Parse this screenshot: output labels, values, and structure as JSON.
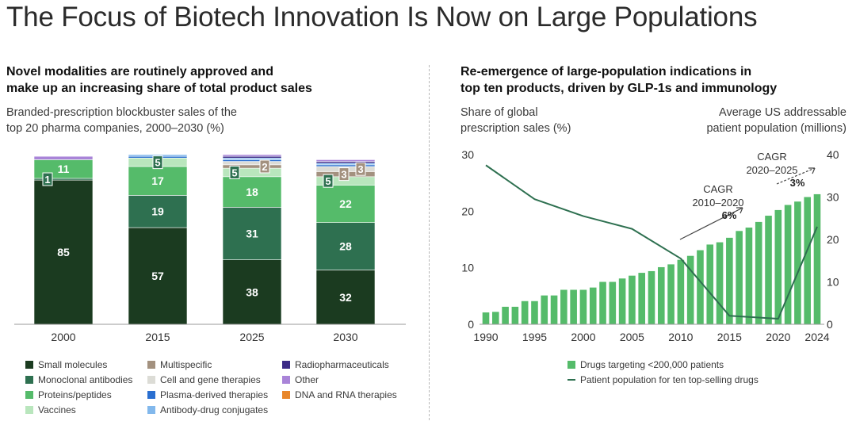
{
  "page": {
    "title": "The Focus of Biotech Innovation Is Now on Large Populations",
    "left_heading": [
      "Novel modalities are routinely approved and",
      "make up an increasing share of total product sales"
    ],
    "left_subtitle": [
      "Branded-prescription blockbuster sales of the",
      "top 20 pharma companies, 2000–2030 (%)"
    ],
    "right_heading": [
      "Re-emergence of large-population indications in",
      "top ten products, driven by GLP-1s and immunology"
    ],
    "right_left_axis_title": [
      "Share of global",
      "prescription sales (%)"
    ],
    "right_right_axis_title": [
      "Average US addressable",
      "patient population (millions)"
    ]
  },
  "chart_data": [
    {
      "type": "bar",
      "stacked": true,
      "title": "Branded-prescription blockbuster sales of the top 20 pharma companies, 2000–2030 (%)",
      "categories": [
        "2000",
        "2015",
        "2025",
        "2030"
      ],
      "ylim": [
        0,
        100
      ],
      "series": [
        {
          "name": "Small molecules",
          "color": "#1b3b20",
          "values": [
            85,
            57,
            38,
            32
          ]
        },
        {
          "name": "Monoclonal antibodies",
          "color": "#2e7050",
          "values": [
            1,
            19,
            31,
            28
          ]
        },
        {
          "name": "Proteins/peptides",
          "color": "#55bb6a",
          "values": [
            11,
            17,
            18,
            22
          ]
        },
        {
          "name": "Vaccines",
          "color": "#b9e6bd",
          "values": [
            0,
            5,
            5,
            5
          ]
        },
        {
          "name": "Multispecific",
          "color": "#a3917f",
          "values": [
            0,
            0,
            2,
            3
          ]
        },
        {
          "name": "Cell and gene therapies",
          "color": "#dcdcd6",
          "values": [
            0,
            0,
            2,
            3
          ]
        },
        {
          "name": "Plasma-derived therapies",
          "color": "#2a6fd0",
          "values": [
            0,
            1,
            1,
            1
          ]
        },
        {
          "name": "Antibody-drug conjugates",
          "color": "#82b8ec",
          "values": [
            0,
            1,
            1,
            1
          ]
        },
        {
          "name": "Radiopharmaceuticals",
          "color": "#3b2a86",
          "values": [
            0,
            0,
            1,
            1
          ]
        },
        {
          "name": "Other",
          "color": "#a984d8",
          "values": [
            2,
            0,
            1,
            1
          ]
        },
        {
          "name": "DNA and RNA therapies",
          "color": "#e8862a",
          "values": [
            0,
            0,
            0,
            0
          ]
        }
      ],
      "data_labels": [
        {
          "category": "2000",
          "series": "Small molecules",
          "text": "85"
        },
        {
          "category": "2000",
          "series": "Monoclonal antibodies",
          "text": "1"
        },
        {
          "category": "2000",
          "series": "Proteins/peptides",
          "text": "11"
        },
        {
          "category": "2015",
          "series": "Small molecules",
          "text": "57"
        },
        {
          "category": "2015",
          "series": "Monoclonal antibodies",
          "text": "19"
        },
        {
          "category": "2015",
          "series": "Proteins/peptides",
          "text": "17"
        },
        {
          "category": "2015",
          "series": "Vaccines",
          "text": "5"
        },
        {
          "category": "2025",
          "series": "Small molecules",
          "text": "38"
        },
        {
          "category": "2025",
          "series": "Monoclonal antibodies",
          "text": "31"
        },
        {
          "category": "2025",
          "series": "Proteins/peptides",
          "text": "18"
        },
        {
          "category": "2025",
          "series": "Vaccines",
          "text": "5"
        },
        {
          "category": "2025",
          "series": "Multispecific",
          "text": "2"
        },
        {
          "category": "2030",
          "series": "Small molecules",
          "text": "32"
        },
        {
          "category": "2030",
          "series": "Monoclonal antibodies",
          "text": "28"
        },
        {
          "category": "2030",
          "series": "Proteins/peptides",
          "text": "22"
        },
        {
          "category": "2030",
          "series": "Vaccines",
          "text": "5"
        },
        {
          "category": "2030",
          "series": "Multispecific",
          "text": "3"
        },
        {
          "category": "2030",
          "series": "Cell and gene therapies",
          "text": "3"
        }
      ],
      "legend": [
        "Small molecules",
        "Monoclonal antibodies",
        "Proteins/peptides",
        "Vaccines",
        "Multispecific",
        "Cell and gene therapies",
        "Plasma-derived therapies",
        "Antibody-drug conjugates",
        "Radiopharmaceuticals",
        "Other",
        "DNA and RNA therapies"
      ]
    },
    {
      "type": "bar+line",
      "title": "Re-emergence of large-population indications in top ten products, driven by GLP-1s and immunology",
      "x_ticks": [
        "1990",
        "1995",
        "2000",
        "2005",
        "2010",
        "2015",
        "2020",
        "2024"
      ],
      "x_range": [
        1990,
        2024
      ],
      "left_axis": {
        "label": "Share of global prescription sales (%)",
        "range": [
          0,
          30
        ],
        "ticks": [
          "0",
          "10",
          "20",
          "30"
        ]
      },
      "right_axis": {
        "label": "Average US addressable patient population (millions)",
        "range": [
          0,
          40
        ],
        "ticks": [
          "0",
          "10",
          "20",
          "30",
          "40"
        ]
      },
      "bar_series": {
        "name": "Drugs targeting <200,000 patients",
        "color": "#55bb6a",
        "axis": "left",
        "x": [
          1990,
          1991,
          1992,
          1993,
          1994,
          1995,
          1996,
          1997,
          1998,
          1999,
          2000,
          2001,
          2002,
          2003,
          2004,
          2005,
          2006,
          2007,
          2008,
          2009,
          2010,
          2011,
          2012,
          2013,
          2014,
          2015,
          2016,
          2017,
          2018,
          2019,
          2020,
          2021,
          2022,
          2023,
          2024
        ],
        "values": [
          2.1,
          2.2,
          3.1,
          3.1,
          4.1,
          4.1,
          5.1,
          5.1,
          6.1,
          6.1,
          6.1,
          6.5,
          7.5,
          7.5,
          8.1,
          8.6,
          9.1,
          9.4,
          10.1,
          10.6,
          11.4,
          12.1,
          13.1,
          14.1,
          14.5,
          15.3,
          16.5,
          17.1,
          18.1,
          19.2,
          20.2,
          21.1,
          21.7,
          22.5,
          23.0
        ]
      },
      "line_series": {
        "name": "Patient population for ten top-selling drugs",
        "color": "#2e7050",
        "axis": "right",
        "x": [
          1990,
          1995,
          2000,
          2005,
          2010,
          2015,
          2020,
          2024
        ],
        "values": [
          37.5,
          29.5,
          25.5,
          22.5,
          15.5,
          2.0,
          1.3,
          23.0
        ]
      },
      "annotations": [
        {
          "label": [
            "CAGR",
            "2010–2020"
          ],
          "value": "6%"
        },
        {
          "label": [
            "CAGR",
            "2020–2025"
          ],
          "value": "3%"
        }
      ],
      "legend": [
        "Drugs targeting <200,000 patients",
        "Patient population for ten top-selling drugs"
      ]
    }
  ]
}
